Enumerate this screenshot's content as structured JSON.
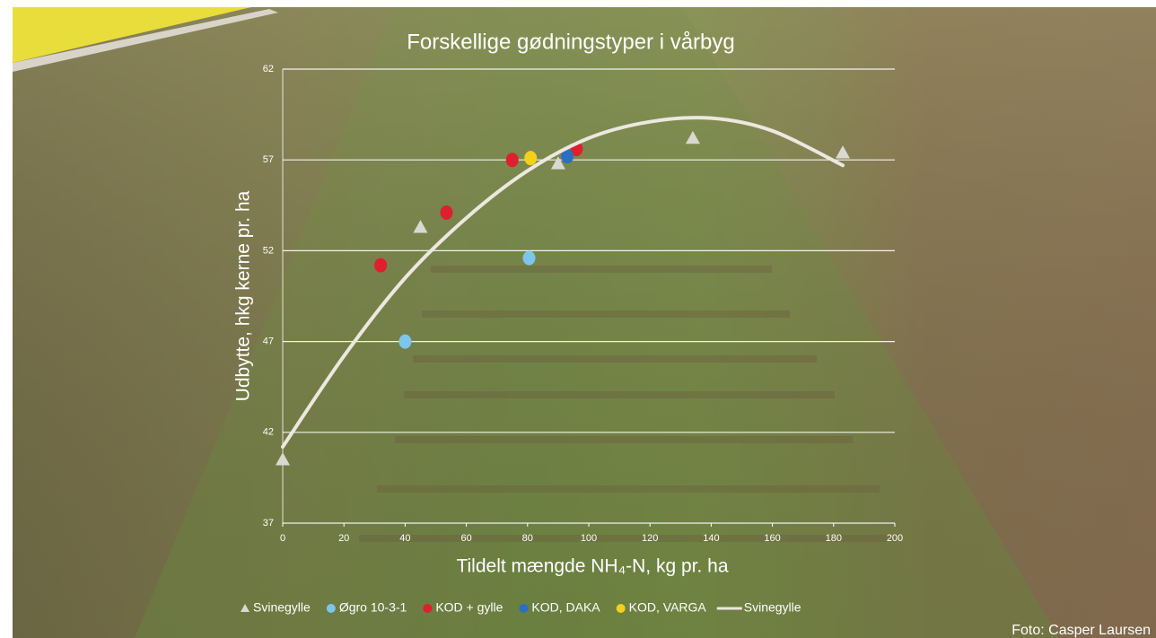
{
  "chart_data": {
    "type": "scatter",
    "title": "Forskellige gødningstyper i vårbyg",
    "xlabel": "Tildelt mængde NH₄-N, kg pr. ha",
    "ylabel": "Udbytte, hkg kerne pr. ha",
    "credit": "Foto: Casper Laursen",
    "xlim": [
      0,
      200
    ],
    "ylim": [
      37,
      62
    ],
    "xticks": [
      0,
      20,
      40,
      60,
      80,
      100,
      120,
      140,
      160,
      180,
      200
    ],
    "yticks": [
      37,
      42,
      47,
      52,
      57,
      62
    ],
    "grid": true,
    "legend": "bottom",
    "series": [
      {
        "name": "Svinegylle",
        "marker": "triangle",
        "color": "#d9d9d2",
        "x": [
          0,
          45,
          90,
          134,
          183
        ],
        "values": [
          40.5,
          53.3,
          56.8,
          58.2,
          57.4
        ]
      },
      {
        "name": "Øgro 10-3-1",
        "marker": "circle",
        "color": "#7cc6ee",
        "x": [
          40,
          80.5
        ],
        "values": [
          47,
          51.6
        ]
      },
      {
        "name": "KOD + gylle",
        "marker": "circle",
        "color": "#de1f2d",
        "x": [
          32,
          53.5,
          75,
          96
        ],
        "values": [
          51.2,
          54.1,
          57,
          57.6
        ]
      },
      {
        "name": "KOD, DAKA",
        "marker": "circle",
        "color": "#2b6ec2",
        "x": [
          93
        ],
        "values": [
          57.2
        ]
      },
      {
        "name": "KOD, VARGA",
        "marker": "circle",
        "color": "#f2d01c",
        "x": [
          81
        ],
        "values": [
          57.1
        ]
      },
      {
        "name": "Svinegylle",
        "marker": "line",
        "color": "#ece8df",
        "x": [
          0,
          20,
          40,
          60,
          80,
          100,
          120,
          140,
          160,
          183
        ],
        "values": [
          41.2,
          46.2,
          50.5,
          53.8,
          56.4,
          58.2,
          59.1,
          59.3,
          58.6,
          56.7
        ]
      }
    ]
  }
}
